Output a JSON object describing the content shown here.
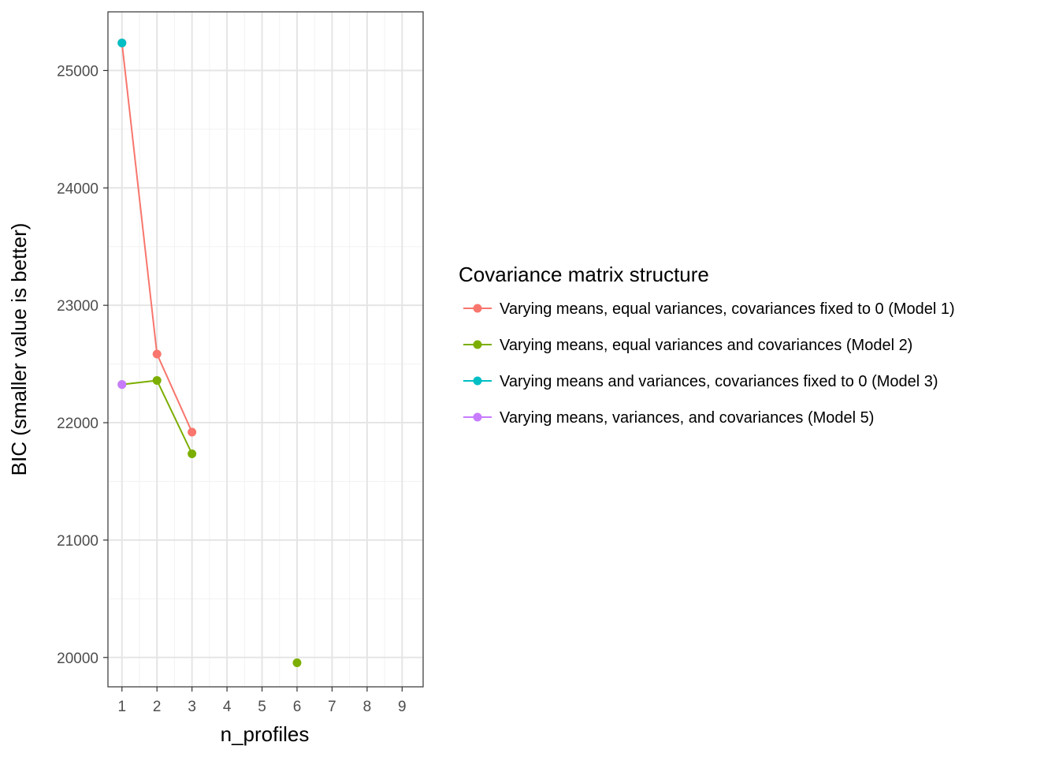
{
  "chart_data": {
    "type": "line",
    "title": "",
    "xlabel": "n_profiles",
    "ylabel": "BIC (smaller value is better)",
    "xlim": [
      0.6,
      9.6
    ],
    "ylim": [
      19750,
      25500
    ],
    "x_ticks": [
      1,
      2,
      3,
      4,
      5,
      6,
      7,
      8,
      9
    ],
    "x_tick_labels": [
      "1",
      "2",
      "3",
      "4",
      "5",
      "6",
      "7",
      "8",
      "9"
    ],
    "y_ticks": [
      20000,
      21000,
      22000,
      23000,
      24000,
      25000
    ],
    "y_tick_labels": [
      "20000",
      "21000",
      "22000",
      "23000",
      "24000",
      "25000"
    ],
    "grid": true,
    "legend": {
      "title": "Covariance matrix structure",
      "position": "right"
    },
    "series": [
      {
        "name": "Varying means, equal variances, covariances fixed to 0 (Model 1)",
        "color": "#F8766D",
        "x": [
          1,
          2,
          3
        ],
        "values": [
          25235,
          22585,
          21920
        ]
      },
      {
        "name": "Varying means, equal variances and covariances (Model 2)",
        "color": "#7CAE00",
        "x": [
          1,
          2,
          3,
          6
        ],
        "values": [
          22325,
          22360,
          21735,
          19955
        ],
        "line_segments": [
          [
            0,
            1,
            2
          ]
        ]
      },
      {
        "name": "Varying means and variances, covariances fixed to 0 (Model 3)",
        "color": "#00BFC4",
        "x": [
          1
        ],
        "values": [
          25235
        ]
      },
      {
        "name": "Varying means, variances, and covariances (Model 5)",
        "color": "#C77CFF",
        "x": [
          1
        ],
        "values": [
          22325
        ]
      }
    ],
    "draw_order": [
      0,
      1,
      3,
      2
    ]
  }
}
